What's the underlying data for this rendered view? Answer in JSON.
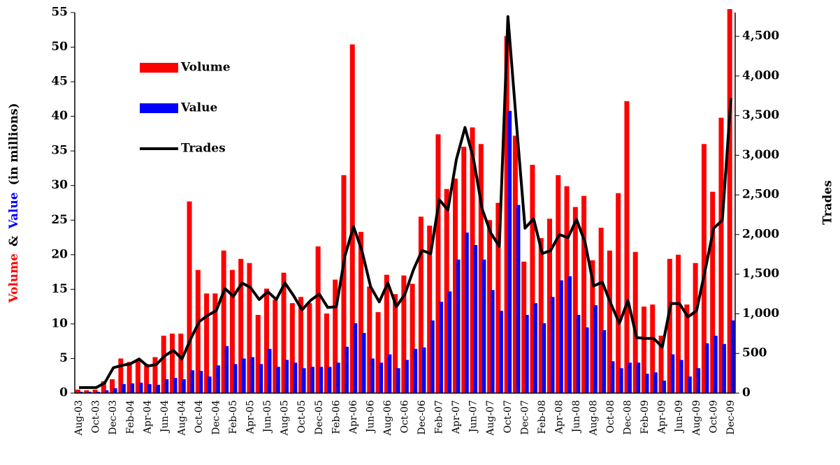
{
  "chart_data": {
    "type": "bar-line",
    "ylabel_parts": [
      "Volume",
      "&",
      "Value",
      "(in millions)"
    ],
    "ylabel_colors": [
      "#ff0000",
      "#000000",
      "#0000ff",
      "#000000"
    ],
    "y2label": "Trades",
    "legend": "upper left",
    "categories": [
      "Aug-03",
      null,
      "Oct-03",
      null,
      "Dec-03",
      null,
      "Feb-04",
      null,
      "Apr-04",
      null,
      "Jun-04",
      null,
      "Aug-04",
      null,
      "Oct-04",
      null,
      "Dec-04",
      null,
      "Feb-05",
      null,
      "Apr-05",
      null,
      "Jun-05",
      null,
      "Aug-05",
      null,
      "Oct-05",
      null,
      "Dec-05",
      null,
      "Feb-06",
      null,
      "Apr-06",
      null,
      "Jun-06",
      null,
      "Aug-06",
      null,
      "Oct-06",
      null,
      "Dec-06",
      null,
      "Feb-07",
      null,
      "Apr-07",
      null,
      "Jun-07",
      null,
      "Aug-07",
      null,
      "Oct-07",
      null,
      "Dec-07",
      null,
      "Feb-08",
      null,
      "Apr-08",
      null,
      "Jun-08",
      null,
      "Aug-08",
      null,
      "Oct-08",
      null,
      "Dec-08",
      null,
      "Feb-09",
      null,
      "Apr-09",
      null,
      "Jun-09",
      null,
      "Aug-09",
      null,
      "Oct-09",
      null,
      "Dec-09"
    ],
    "series": [
      {
        "name": "Volume",
        "color": "#ff0000",
        "kind": "bar",
        "values": [
          0.5,
          0.4,
          0.5,
          1.7,
          2,
          5,
          4.5,
          4.7,
          4.2,
          5.2,
          8.3,
          8.6,
          8.6,
          27.7,
          17.8,
          14.4,
          14.4,
          20.6,
          17.8,
          19.4,
          18.8,
          11.3,
          15.1,
          13.5,
          17.4,
          13,
          13.9,
          13,
          21.2,
          11.5,
          16.4,
          31.5,
          50.4,
          23.3,
          15.4,
          11.7,
          17.1,
          14.3,
          17,
          15.8,
          25.5,
          24.2,
          37.4,
          29.5,
          31,
          35.6,
          38.4,
          36,
          25,
          27.5,
          51.6,
          37.2,
          19,
          33,
          22.4,
          25.2,
          31.5,
          29.9,
          26.9,
          28.5,
          19.2,
          23.9,
          20.6,
          28.9,
          42.2,
          20.4,
          12.5,
          12.8,
          8.3,
          19.4,
          20,
          12.8,
          18.8,
          36,
          29.1,
          39.8,
          55.5
        ]
      },
      {
        "name": "Value",
        "color": "#0000ff",
        "kind": "bar",
        "values": [
          0.2,
          0.2,
          0.2,
          0.4,
          0.7,
          1.3,
          1.4,
          1.5,
          1.3,
          1.2,
          2,
          2.2,
          2,
          3.3,
          3.2,
          2.4,
          4,
          6.8,
          4.2,
          5,
          5.2,
          4.2,
          6.4,
          3.8,
          4.8,
          4.4,
          3.6,
          3.8,
          3.8,
          3.8,
          4.4,
          6.7,
          10.1,
          8.7,
          5,
          4.4,
          5.6,
          3.6,
          4.8,
          6.4,
          6.6,
          10.5,
          13.2,
          14.7,
          19.3,
          23.2,
          21.4,
          19.3,
          14.9,
          11.9,
          40.8,
          27.2,
          11.3,
          13,
          10.1,
          13.9,
          16.3,
          16.9,
          11.3,
          9.5,
          12.7,
          9.1,
          4.6,
          3.6,
          4.4,
          4.4,
          2.8,
          3,
          1.8,
          5.6,
          4.8,
          2.4,
          3.6,
          7.2,
          8.3,
          7.1,
          10.5
        ]
      },
      {
        "name": "Trades",
        "color": "#000000",
        "kind": "line",
        "axis": "y2",
        "values": [
          70,
          70,
          70,
          130,
          320,
          350,
          370,
          430,
          340,
          360,
          470,
          540,
          430,
          680,
          900,
          980,
          1040,
          1320,
          1220,
          1390,
          1330,
          1180,
          1280,
          1180,
          1390,
          1230,
          1050,
          1170,
          1250,
          1080,
          1090,
          1730,
          2100,
          1790,
          1340,
          1150,
          1390,
          1090,
          1250,
          1560,
          1800,
          1760,
          2440,
          2310,
          2950,
          3350,
          2950,
          2320,
          2020,
          1850,
          4750,
          3400,
          2080,
          2200,
          1760,
          1800,
          2000,
          1960,
          2190,
          1900,
          1350,
          1400,
          1130,
          880,
          1170,
          700,
          690,
          690,
          580,
          1130,
          1130,
          960,
          1040,
          1550,
          2080,
          2180,
          3720
        ]
      }
    ],
    "ylim": [
      0,
      55
    ],
    "yticks": [
      0,
      5,
      10,
      15,
      20,
      25,
      30,
      35,
      40,
      45,
      50,
      55
    ],
    "y2lim": [
      0,
      4800
    ],
    "y2ticks": [
      0,
      500,
      {
        "value": 1000,
        "label": "1,000"
      },
      {
        "value": 1500,
        "label": "1,500"
      },
      {
        "value": 2000,
        "label": "2,000"
      },
      {
        "value": 2500,
        "label": "2,500"
      },
      {
        "value": 3000,
        "label": "3,000"
      },
      {
        "value": 3500,
        "label": "3,500"
      },
      {
        "value": 4000,
        "label": "4,000"
      },
      {
        "value": 4500,
        "label": "4,500"
      }
    ],
    "grid": false
  }
}
